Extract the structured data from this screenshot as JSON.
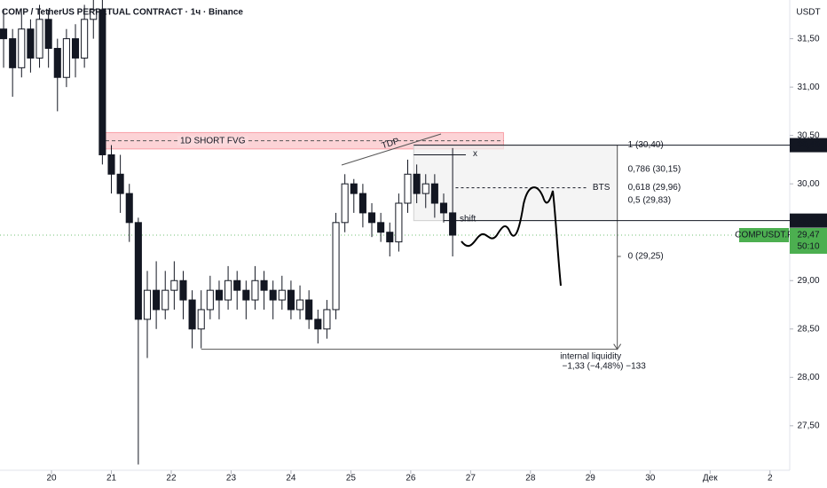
{
  "chart_data": {
    "type": "candlestick",
    "title": "COMP / TetherUS PERPETUAL CONTRACT · 1ч · Binance",
    "currency": "USDT",
    "xlim": [
      19.14,
      32.33
    ],
    "ylim": [
      27.04,
      31.9
    ],
    "xticks": [
      20,
      21,
      22,
      23,
      24,
      25,
      26,
      27,
      28,
      29,
      30,
      {
        "value": 31,
        "label": "Дек"
      },
      {
        "value": 32,
        "label": "2"
      }
    ],
    "yticks": [
      {
        "value": 27.5,
        "label": "27,50"
      },
      {
        "value": 28,
        "label": "28,00"
      },
      {
        "value": 28.5,
        "label": "28,50"
      },
      {
        "value": 29,
        "label": "29,00"
      },
      {
        "value": 29.5,
        "label": "29,50"
      },
      {
        "value": 30,
        "label": "30,00"
      },
      {
        "value": 30.5,
        "label": "30,50"
      },
      {
        "value": 31,
        "label": "31,00"
      },
      {
        "value": 31.5,
        "label": "31,50"
      }
    ],
    "up_color": "#ffffff",
    "down_color": "#131722",
    "wick_color": "#131722",
    "ohlc": {
      "x": [
        19.2,
        19.35,
        19.5,
        19.65,
        19.8,
        19.95,
        20.1,
        20.25,
        20.4,
        20.55,
        20.7,
        20.85,
        21.0,
        21.15,
        21.3,
        21.45,
        21.6,
        21.75,
        21.9,
        22.05,
        22.2,
        22.35,
        22.5,
        22.65,
        22.8,
        22.95,
        23.1,
        23.25,
        23.4,
        23.55,
        23.7,
        23.85,
        24.0,
        24.15,
        24.3,
        24.45,
        24.6,
        24.75,
        24.9,
        25.05,
        25.2,
        25.35,
        25.5,
        25.65,
        25.8,
        25.95,
        26.1,
        26.25,
        26.4,
        26.55,
        26.7
      ],
      "open": [
        31.6,
        31.5,
        31.2,
        31.6,
        31.3,
        31.7,
        31.4,
        31.1,
        31.5,
        31.3,
        31.7,
        31.8,
        30.3,
        30.1,
        29.9,
        29.6,
        28.6,
        28.9,
        28.7,
        28.9,
        29.0,
        28.8,
        28.5,
        28.7,
        28.9,
        28.8,
        29.0,
        28.9,
        28.8,
        29.0,
        28.9,
        28.8,
        28.9,
        28.7,
        28.8,
        28.6,
        28.5,
        28.7,
        29.6,
        30.0,
        29.9,
        29.7,
        29.6,
        29.5,
        29.4,
        29.8,
        30.1,
        29.9,
        30.0,
        29.8,
        29.7
      ],
      "high": [
        31.8,
        31.6,
        31.75,
        31.7,
        31.85,
        31.8,
        31.5,
        31.6,
        31.65,
        31.85,
        31.9,
        31.9,
        30.4,
        30.3,
        30.0,
        29.65,
        29.1,
        29.2,
        29.1,
        29.2,
        29.1,
        28.9,
        28.9,
        29.05,
        29.0,
        29.15,
        29.1,
        29.0,
        29.15,
        29.1,
        29.0,
        29.05,
        29.0,
        28.95,
        28.9,
        28.7,
        28.8,
        29.7,
        30.1,
        30.05,
        30.0,
        29.8,
        29.7,
        29.6,
        29.9,
        30.25,
        30.2,
        30.1,
        30.1,
        29.9,
        30.37
      ],
      "low": [
        31.2,
        30.9,
        31.1,
        31.15,
        31.2,
        31.2,
        30.75,
        31.0,
        31.1,
        31.2,
        31.5,
        30.2,
        29.9,
        29.7,
        29.4,
        27.1,
        28.2,
        28.5,
        28.6,
        28.7,
        28.6,
        28.3,
        28.3,
        28.6,
        28.6,
        28.7,
        28.7,
        28.6,
        28.7,
        28.7,
        28.6,
        28.7,
        28.6,
        28.6,
        28.5,
        28.35,
        28.4,
        28.6,
        29.5,
        29.7,
        29.55,
        29.45,
        29.4,
        29.25,
        29.3,
        29.7,
        29.8,
        29.75,
        29.65,
        29.6,
        29.25
      ],
      "close": [
        31.5,
        31.2,
        31.6,
        31.3,
        31.7,
        31.4,
        31.1,
        31.5,
        31.3,
        31.7,
        31.8,
        30.3,
        30.1,
        29.9,
        29.6,
        28.6,
        28.9,
        28.7,
        28.9,
        29.0,
        28.8,
        28.5,
        28.7,
        28.9,
        28.8,
        29.0,
        28.9,
        28.8,
        29.0,
        28.9,
        28.8,
        28.9,
        28.7,
        28.8,
        28.6,
        28.5,
        28.7,
        29.6,
        30.0,
        29.9,
        29.7,
        29.6,
        29.5,
        29.4,
        29.8,
        30.1,
        29.9,
        30.0,
        29.8,
        29.7,
        29.47
      ]
    },
    "fvg": {
      "label": "1D SHORT FVG",
      "top": 30.53,
      "bottom": 30.36,
      "x": [
        20.8,
        27.55
      ],
      "color": "#f23645"
    },
    "fib": {
      "x": [
        26.05,
        29.45
      ],
      "levels": [
        {
          "value": 30.4,
          "label": "1 (30,40)"
        },
        {
          "value": 30.15,
          "label": "0,786 (30,15)"
        },
        {
          "value": 29.96,
          "label": "0,618 (29,96)"
        },
        {
          "value": 29.83,
          "label": "0,5 (29,83)"
        },
        {
          "value": 29.25,
          "label": "0 (29,25)"
        }
      ]
    },
    "price_tags": [
      {
        "value": 30.4,
        "label": "30,40"
      },
      {
        "value": 29.62,
        "label": "29,62"
      }
    ],
    "last_price": {
      "value": 29.47,
      "label": "29,47",
      "symbol": "COMPUSDT.P",
      "countdown": "50:10",
      "color": "#4caf50"
    },
    "bts": {
      "value": 29.96,
      "label": "BTS"
    },
    "shift": {
      "value": 29.62,
      "label": "shift"
    },
    "x_mark": {
      "value": 30.3,
      "label": "x"
    },
    "trend_label": "TDP",
    "measure": {
      "value": 28.29,
      "x": [
        22.5,
        29.45
      ],
      "label": "internal liquidity",
      "change": "−1,33 (−4,48%) −133"
    }
  }
}
